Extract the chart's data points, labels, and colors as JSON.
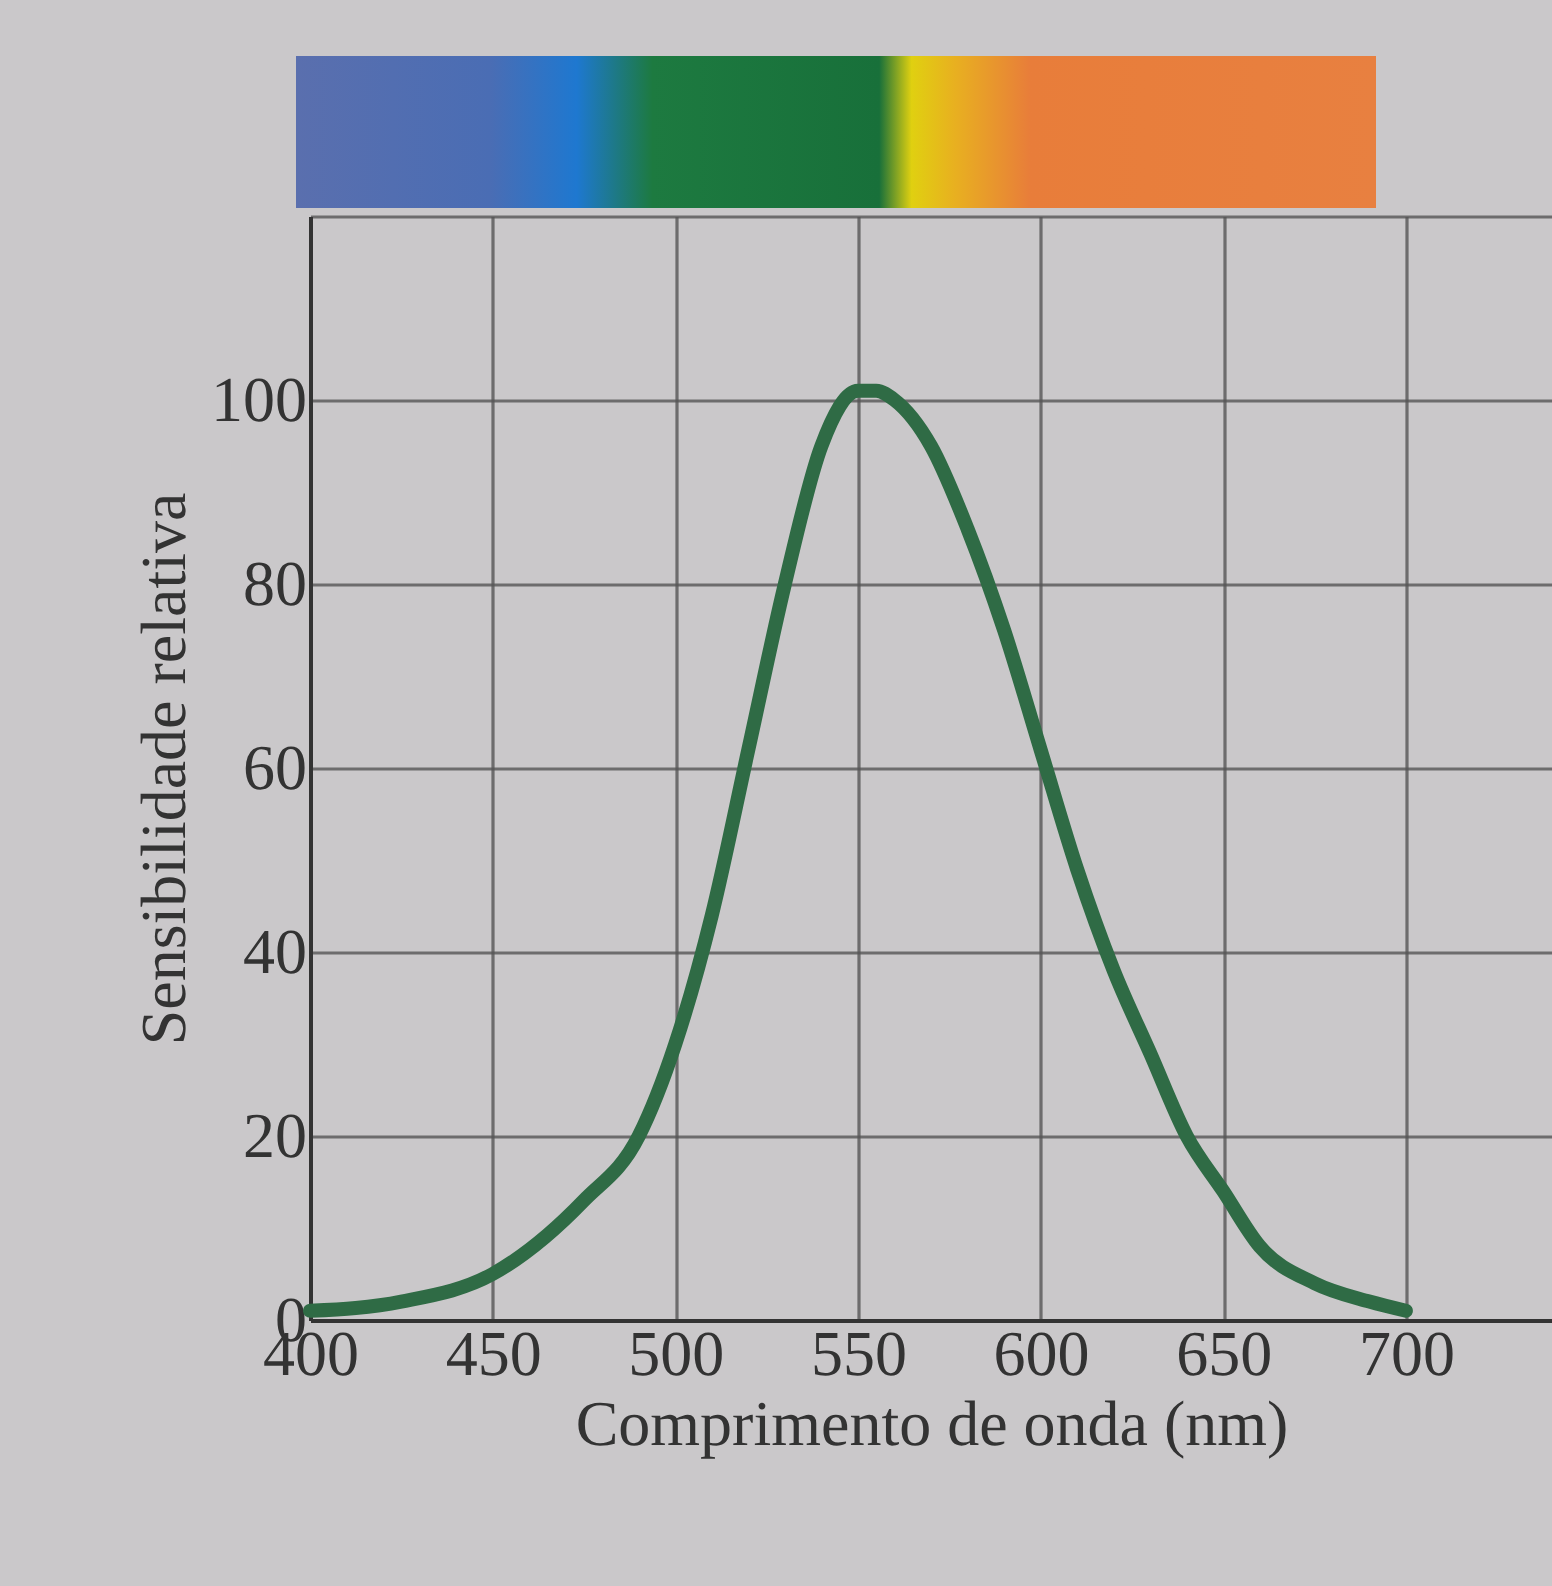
{
  "chart_data": {
    "type": "line",
    "xlabel": "Comprimento de onda (nm)",
    "ylabel": "Sensibilidade relativa",
    "x": [
      400,
      425,
      450,
      475,
      490,
      500,
      510,
      520,
      530,
      540,
      550,
      555,
      560,
      570,
      580,
      590,
      600,
      610,
      620,
      630,
      640,
      650,
      660,
      675,
      690,
      700
    ],
    "series": [
      {
        "color": "#2f6b45",
        "values": [
          1,
          2,
          5,
          13,
          20,
          30,
          44,
          62,
          80,
          95,
          101,
          101,
          100,
          95,
          86,
          75,
          62,
          49,
          38,
          29,
          20,
          14,
          8,
          4,
          2,
          1
        ]
      }
    ],
    "xlim": [
      400,
      740
    ],
    "xticks": [
      400,
      450,
      500,
      550,
      600,
      650,
      700
    ],
    "ylim": [
      0,
      120
    ],
    "yticks": [
      0,
      20,
      40,
      60,
      80,
      100,
      {
        "value": 120,
        "label": null
      }
    ],
    "grid": true,
    "line_style": "solid"
  }
}
